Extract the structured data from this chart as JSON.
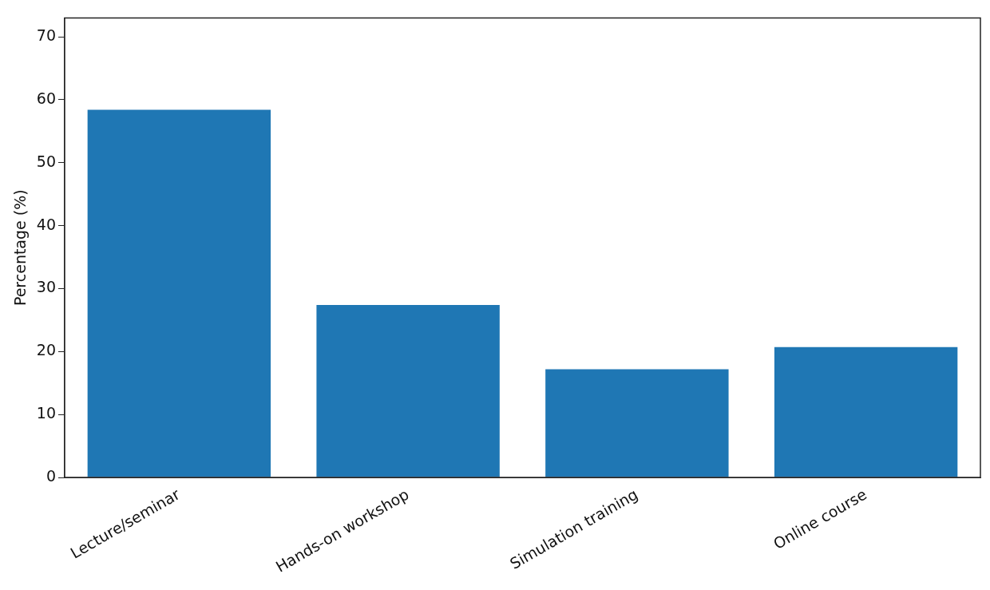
{
  "chart_data": {
    "type": "bar",
    "ylabel": "Percentage (%)",
    "categories": [
      "Lecture/seminar",
      "Hands-on workshop",
      "Simulation training",
      "Online course"
    ],
    "values": [
      58.4,
      27.4,
      17.2,
      20.7
    ],
    "color": "#1f77b4",
    "ylim": [
      0,
      73
    ],
    "yticks": [
      0,
      10,
      20,
      30,
      40,
      50,
      60,
      70
    ],
    "grid": false,
    "legend": false
  }
}
